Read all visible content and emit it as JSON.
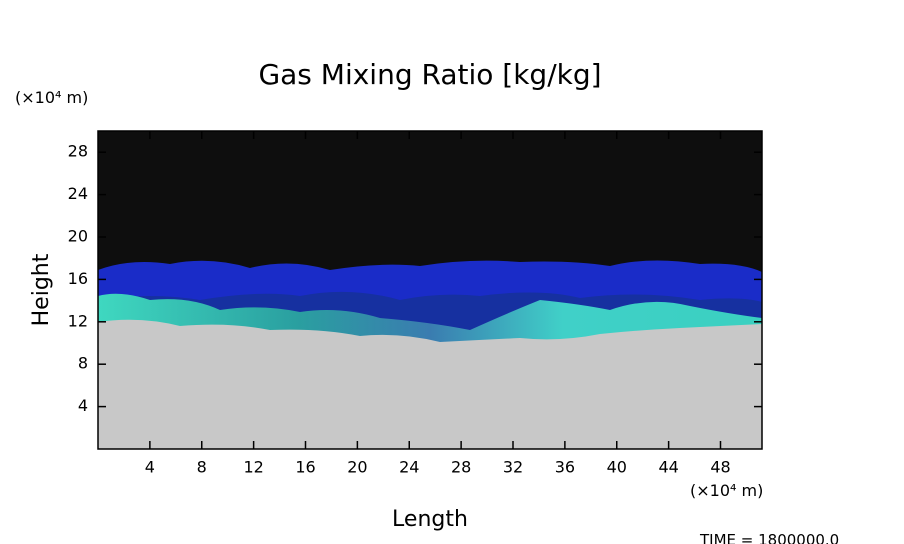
{
  "chart_data": {
    "type": "field",
    "title": "Gas Mixing Ratio [kg/kg]",
    "x_label": "Length",
    "y_label": "Height",
    "x_unit": "(×10⁴ m)",
    "y_unit": "(×10⁴ m)",
    "xlim": [
      0,
      51.2
    ],
    "xticks": [
      4,
      8,
      12,
      16,
      20,
      24,
      28,
      32,
      36,
      40,
      44,
      48
    ],
    "ylim": [
      0,
      30
    ],
    "yticks": [
      4,
      8,
      12,
      16,
      20,
      24,
      28
    ],
    "time_label": "TIME = 1800000.0"
  }
}
